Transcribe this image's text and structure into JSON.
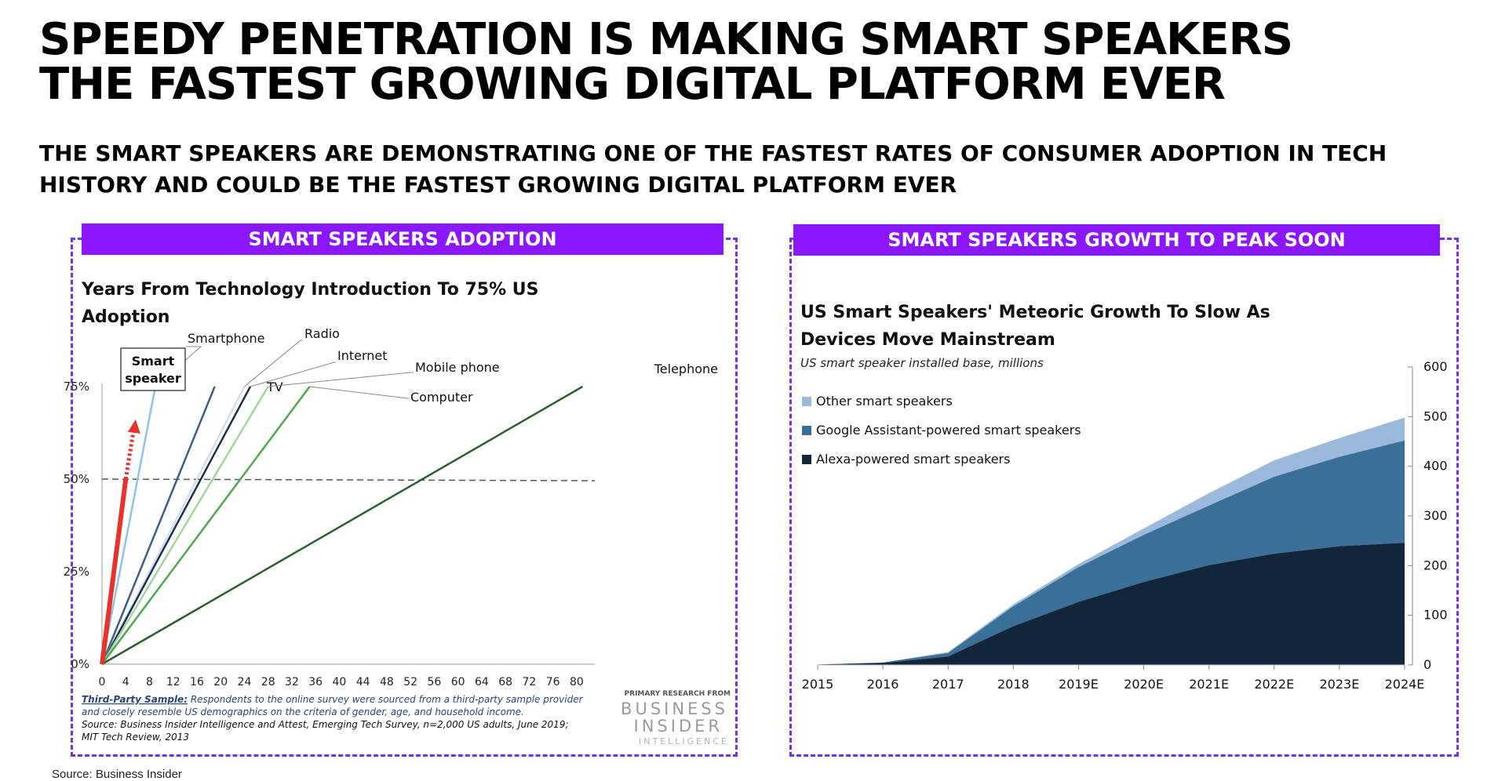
{
  "headline": {
    "line1": "SPEEDY PENETRATION IS MAKING SMART SPEAKERS",
    "line2": "THE FASTEST GROWING DIGITAL PLATFORM EVER"
  },
  "subhead": {
    "line1": "THE SMART SPEAKERS ARE DEMONSTRATING ONE OF THE FASTEST RATES OF CONSUMER ADOPTION IN TECH",
    "line2": "HISTORY AND COULD BE THE FASTEST GROWING DIGITAL PLATFORM EVER"
  },
  "left_panel": {
    "banner": "SMART SPEAKERS ADOPTION",
    "title_line1": "Years From Technology Introduction To 75% US",
    "title_line2": "Adoption",
    "footnote_label": "Third-Party Sample:",
    "footnote_line1": " Respondents to the online survey were sourced from a third-party sample provider",
    "footnote_line2": "and closely resemble US demographics on the criteria of gender, age, and household income.",
    "footnote_line3": "Source: Business Insider Intelligence and Attest, Emerging Tech Survey, n=2,000 US adults, June 2019;",
    "footnote_line4": "MIT Tech Review, 2013",
    "logo_top": "PRIMARY RESEARCH FROM",
    "logo_line1": "BUSINESS",
    "logo_line2": "INSIDER",
    "logo_line3": "INTELLIGENCE"
  },
  "right_panel": {
    "banner": "SMART SPEAKERS GROWTH TO PEAK SOON",
    "title_line1": "US Smart Speakers' Meteoric Growth To Slow As",
    "title_line2": "Devices Move Mainstream",
    "subtitle": "US smart speaker installed base, millions"
  },
  "source": "Source: Business Insider",
  "chart_data": [
    {
      "type": "line",
      "title": "Years From Technology Introduction To 75% US Adoption",
      "xlabel": "",
      "ylabel": "",
      "xlim": [
        0,
        82
      ],
      "ylim": [
        0,
        75
      ],
      "x_ticks": [
        "0",
        "4",
        "8",
        "12",
        "16",
        "20",
        "24",
        "28",
        "32",
        "36",
        "40",
        "44",
        "48",
        "52",
        "56",
        "60",
        "64",
        "68",
        "72",
        "76",
        "80"
      ],
      "y_ticks": [
        "0%",
        "25%",
        "50%",
        "75%"
      ],
      "reference_line": {
        "y": 50,
        "style": "dashed"
      },
      "series": [
        {
          "name": "Smart speaker",
          "x": [
            0,
            4
          ],
          "y": [
            0,
            50
          ],
          "color": "#e8322b",
          "style": "arrow-projection"
        },
        {
          "name": "Smartphone",
          "x": [
            0,
            9
          ],
          "y": [
            0,
            75
          ],
          "color": "#8fc3ea"
        },
        {
          "name": "TV",
          "x": [
            0,
            19
          ],
          "y": [
            0,
            75
          ],
          "color": "#3b5e8d"
        },
        {
          "name": "Radio",
          "x": [
            0,
            24
          ],
          "y": [
            0,
            75
          ],
          "color": "#cfe0f2"
        },
        {
          "name": "Internet",
          "x": [
            0,
            25
          ],
          "y": [
            0,
            75
          ],
          "color": "#1e2f4d"
        },
        {
          "name": "Mobile phone",
          "x": [
            0,
            28
          ],
          "y": [
            0,
            75
          ],
          "color": "#9fd79a"
        },
        {
          "name": "Computer",
          "x": [
            0,
            35
          ],
          "y": [
            0,
            75
          ],
          "color": "#4ca84e"
        },
        {
          "name": "Telephone",
          "x": [
            0,
            81
          ],
          "y": [
            0,
            75
          ],
          "color": "#2e5e2e"
        }
      ]
    },
    {
      "type": "area",
      "title": "US Smart Speakers' Meteoric Growth To Slow As Devices Move Mainstream",
      "subtitle": "US smart speaker installed base, millions",
      "categories": [
        "2015",
        "2016",
        "2017",
        "2018",
        "2019E",
        "2020E",
        "2021E",
        "2022E",
        "2023E",
        "2024E"
      ],
      "ylim": [
        0,
        600
      ],
      "y_ticks": [
        "0",
        "100",
        "200",
        "300",
        "400",
        "500",
        "600"
      ],
      "stacked": true,
      "legend_position": "top-left",
      "series": [
        {
          "name": "Alexa-powered smart speakers",
          "values": [
            1,
            4,
            17,
            78,
            127,
            167,
            201,
            224,
            239,
            246
          ],
          "color": "#13253a"
        },
        {
          "name": "Google Assistant-powered smart speakers",
          "values": [
            0,
            1,
            7,
            40,
            70,
            95,
            120,
            155,
            180,
            206
          ],
          "color": "#3a6f98"
        },
        {
          "name": "Other smart speakers",
          "values": [
            0,
            0,
            2,
            4,
            6,
            13,
            25,
            33,
            38,
            46
          ],
          "color": "#9ab9db"
        }
      ]
    }
  ]
}
